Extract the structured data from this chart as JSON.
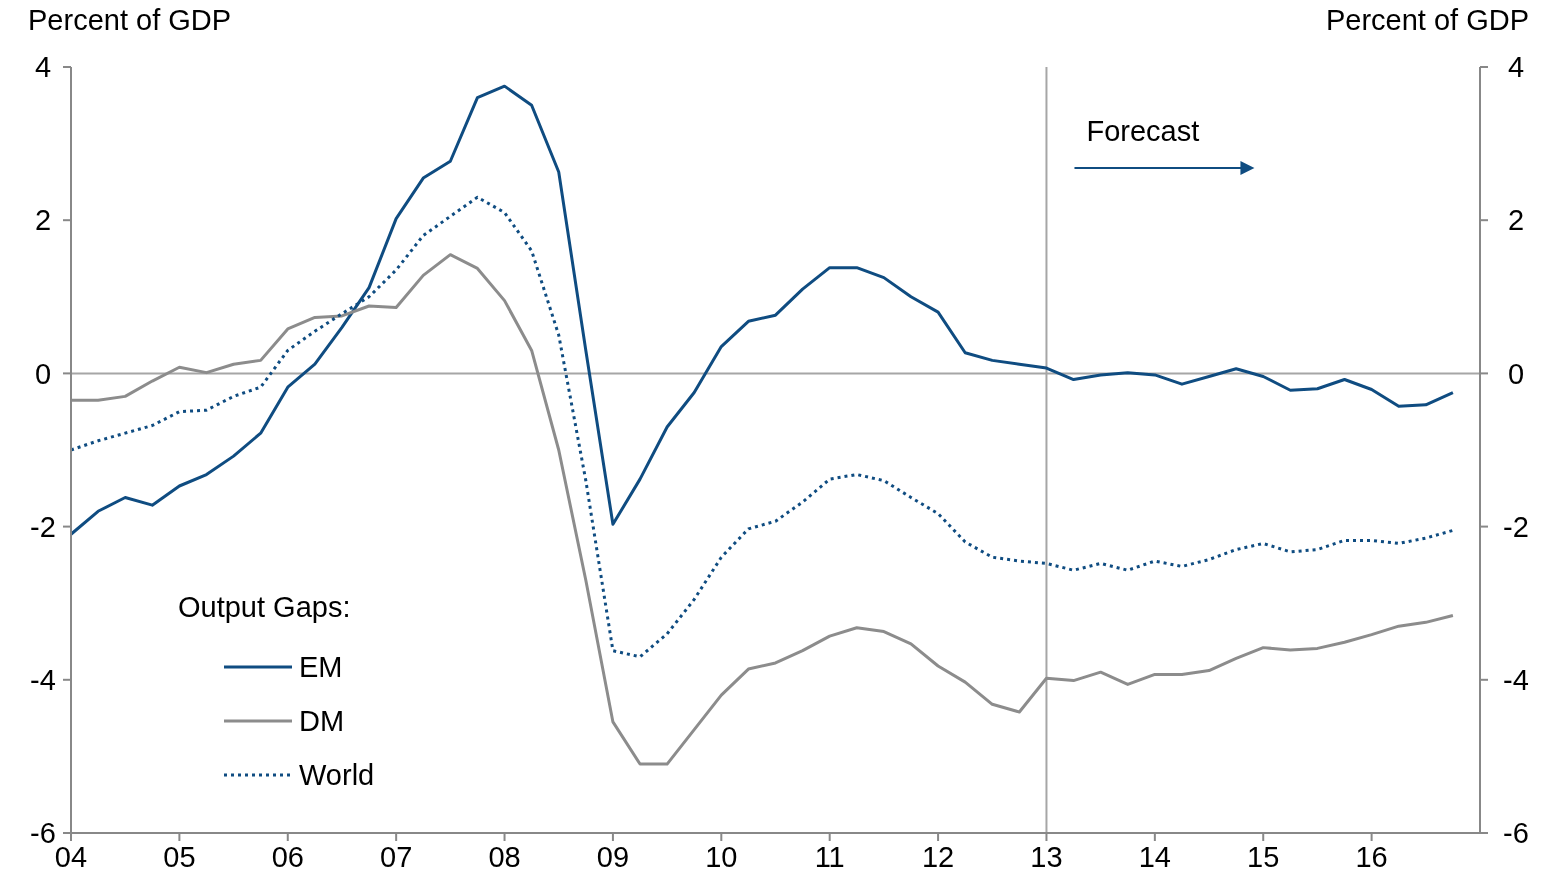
{
  "chart_data": {
    "type": "line",
    "ylabel": "Percent of GDP",
    "y2label": "Percent of GDP",
    "legend_title": "Output Gaps:",
    "legend": "bottom left",
    "grid": false,
    "x": [
      2004,
      2004.25,
      2004.5,
      2004.75,
      2005,
      2005.25,
      2005.5,
      2005.75,
      2006,
      2006.25,
      2006.5,
      2006.75,
      2007,
      2007.25,
      2007.5,
      2007.75,
      2008,
      2008.25,
      2008.5,
      2008.75,
      2009,
      2009.25,
      2009.5,
      2009.75,
      2010,
      2010.25,
      2010.5,
      2010.75,
      2011,
      2011.25,
      2011.5,
      2011.75,
      2012,
      2012.25,
      2012.5,
      2012.75,
      2013,
      2013.25,
      2013.5,
      2013.75,
      2014,
      2014.25,
      2014.5,
      2014.75,
      2015,
      2015.25,
      2015.5,
      2015.75,
      2016,
      2016.25,
      2016.5,
      2016.75
    ],
    "xlim": [
      2004,
      2017
    ],
    "xticks": [
      {
        "value": 2004,
        "label": "04"
      },
      {
        "value": 2005,
        "label": "05"
      },
      {
        "value": 2006,
        "label": "06"
      },
      {
        "value": 2007,
        "label": "07"
      },
      {
        "value": 2008,
        "label": "08"
      },
      {
        "value": 2009,
        "label": "09"
      },
      {
        "value": 2010,
        "label": "10"
      },
      {
        "value": 2011,
        "label": "11"
      },
      {
        "value": 2012,
        "label": "12"
      },
      {
        "value": 2013,
        "label": "13"
      },
      {
        "value": 2014,
        "label": "14"
      },
      {
        "value": 2015,
        "label": "15"
      },
      {
        "value": 2016,
        "label": "16"
      }
    ],
    "ylim": [
      -6,
      4
    ],
    "yticks": [
      -6,
      -4,
      -2,
      0,
      2,
      4
    ],
    "y2lim": [
      -6,
      4
    ],
    "y2ticks": [
      -6,
      -4,
      -2,
      0,
      2,
      4
    ],
    "ref_lines": [
      {
        "axis": "y",
        "value": 0,
        "color": "#a6a6a6"
      },
      {
        "axis": "x",
        "value": 2013,
        "label": "Forecast",
        "color": "#a6a6a6"
      }
    ],
    "series": [
      {
        "name": "EM",
        "color": "#0f4c81",
        "line_style": "solid",
        "values": [
          -2.1,
          -1.8,
          -1.62,
          -1.72,
          -1.47,
          -1.32,
          -1.08,
          -0.78,
          -0.18,
          0.12,
          0.6,
          1.12,
          2.02,
          2.55,
          2.77,
          3.6,
          3.75,
          3.5,
          2.63,
          0.3,
          -1.97,
          -1.38,
          -0.7,
          -0.25,
          0.35,
          0.68,
          0.76,
          1.1,
          1.38,
          1.38,
          1.25,
          1.0,
          0.8,
          0.27,
          0.17,
          0.12,
          0.07,
          -0.08,
          -0.02,
          0.01,
          -0.02,
          -0.14,
          -0.04,
          0.06,
          -0.04,
          -0.22,
          -0.2,
          -0.08,
          -0.21,
          -0.43,
          -0.41,
          -0.25
        ]
      },
      {
        "name": "DM",
        "color": "#8c8c8c",
        "line_style": "solid",
        "values": [
          -0.35,
          -0.35,
          -0.3,
          -0.1,
          0.08,
          0.01,
          0.12,
          0.17,
          0.58,
          0.73,
          0.75,
          0.88,
          0.86,
          1.28,
          1.55,
          1.37,
          0.95,
          0.3,
          -1.0,
          -2.7,
          -4.55,
          -5.1,
          -5.1,
          -4.65,
          -4.2,
          -3.86,
          -3.78,
          -3.62,
          -3.43,
          -3.32,
          -3.37,
          -3.53,
          -3.82,
          -4.03,
          -4.32,
          -4.42,
          -3.98,
          -4.01,
          -3.9,
          -4.06,
          -3.93,
          -3.93,
          -3.88,
          -3.72,
          -3.58,
          -3.61,
          -3.59,
          -3.51,
          -3.41,
          -3.3,
          -3.25,
          -3.16
        ]
      },
      {
        "name": "World",
        "color": "#0f4c81",
        "line_style": "dotted",
        "values": [
          -1.0,
          -0.88,
          -0.78,
          -0.68,
          -0.5,
          -0.48,
          -0.3,
          -0.18,
          0.3,
          0.55,
          0.78,
          1.0,
          1.35,
          1.8,
          2.05,
          2.3,
          2.1,
          1.6,
          0.5,
          -1.4,
          -3.62,
          -3.7,
          -3.4,
          -2.95,
          -2.4,
          -2.03,
          -1.93,
          -1.68,
          -1.38,
          -1.32,
          -1.4,
          -1.62,
          -1.83,
          -2.2,
          -2.4,
          -2.45,
          -2.48,
          -2.57,
          -2.48,
          -2.57,
          -2.45,
          -2.52,
          -2.43,
          -2.3,
          -2.22,
          -2.33,
          -2.3,
          -2.18,
          -2.18,
          -2.22,
          -2.15,
          -2.05
        ]
      }
    ]
  }
}
